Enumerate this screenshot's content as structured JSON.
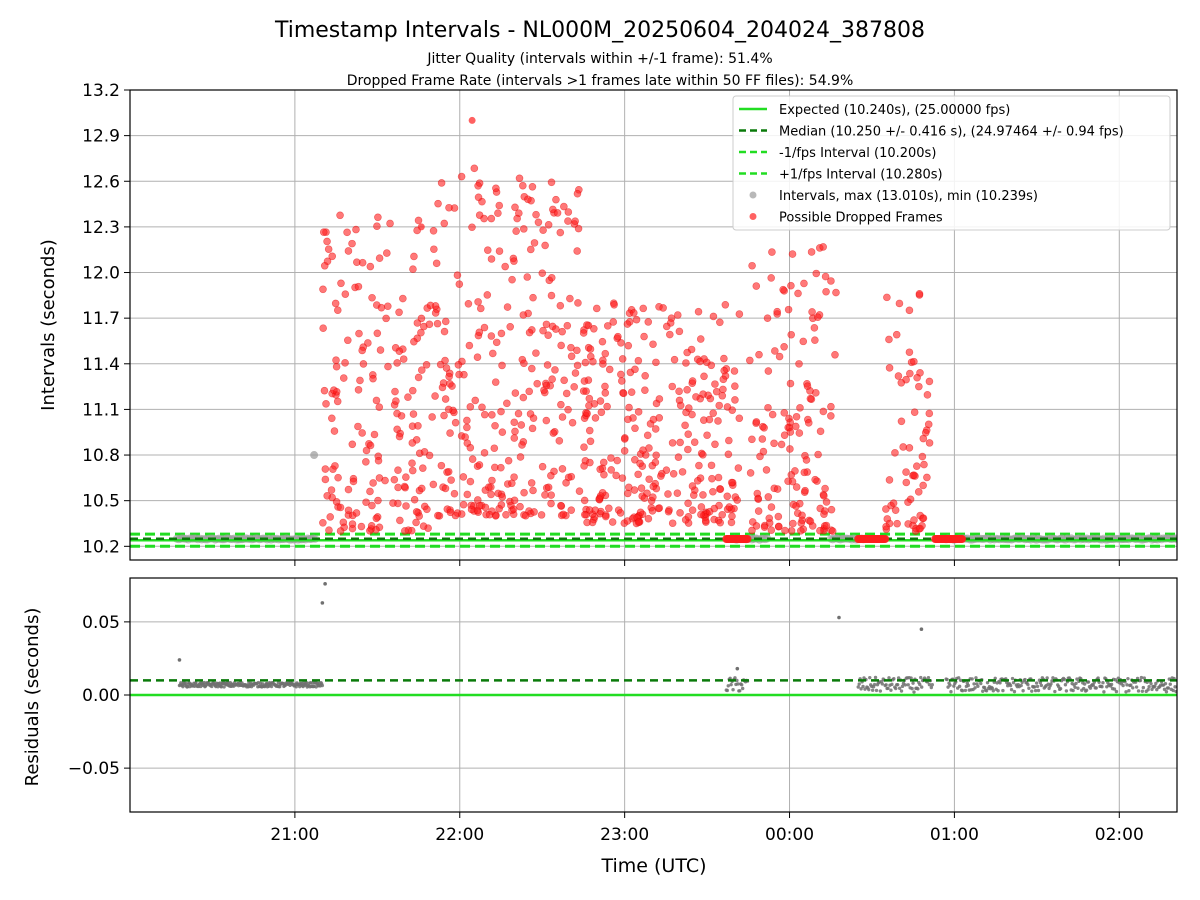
{
  "chart_data": [
    {
      "type": "scatter",
      "title": "Timestamp Intervals - NL000M_20250604_204024_387808",
      "subtitle_1": "Jitter Quality (intervals within +/-1 frame): 51.4%",
      "subtitle_2": "Dropped Frame Rate (intervals >1 frames late within 50 FF files): 54.9%",
      "ylabel": "Intervals (seconds)",
      "ylim": [
        10.11,
        13.2
      ],
      "yticks": [
        "10.2",
        "10.5",
        "10.8",
        "11.1",
        "11.4",
        "11.7",
        "12.0",
        "12.3",
        "12.6",
        "12.9",
        "13.2"
      ],
      "ytick_values": [
        10.2,
        10.5,
        10.8,
        11.1,
        11.4,
        11.7,
        12.0,
        12.3,
        12.6,
        12.9,
        13.2
      ],
      "xlim": [
        "20:23",
        "02:44"
      ],
      "xticks_minutes": [
        60,
        120,
        180,
        240,
        300,
        360
      ],
      "grid": true,
      "legend_position": "top-right",
      "lines": {
        "expected": 10.24,
        "median": 10.25,
        "minus_fps": 10.2,
        "plus_fps": 10.28
      },
      "legend": [
        {
          "label": "Expected (10.240s), (25.00000 fps)",
          "style": "solid",
          "color": "#22dd22"
        },
        {
          "label": "Median (10.250 +/- 0.416 s), (24.97464 +/- 0.94 fps)",
          "style": "dashed",
          "color": "#0a7a0a"
        },
        {
          "label": "-1/fps Interval (10.200s)",
          "style": "dashed",
          "color": "#22dd22"
        },
        {
          "label": "+1/fps Interval (10.280s)",
          "style": "dashed",
          "color": "#22dd22"
        },
        {
          "label": "Intervals, max (13.010s), min (10.239s)",
          "style": "dot",
          "color": "#9a9a9a"
        },
        {
          "label": "Possible Dropped Frames",
          "style": "dot",
          "color": "#ff2020"
        }
      ],
      "series": [
        {
          "name": "Intervals, max (13.010s), min (10.239s)",
          "segments_min": [
            [
              17,
              68
            ],
            [
              220,
              232
            ],
            [
              255,
              268
            ],
            [
              297,
              381
            ]
          ],
          "value": 10.248,
          "extra_points": [
            {
              "x": 67,
              "y": 10.8
            }
          ]
        },
        {
          "name": "Possible Dropped Frames",
          "clusters": [
            {
              "range": [
                70,
                112
              ],
              "ymin": 10.3,
              "ymax": 12.4,
              "n": 190
            },
            {
              "range": [
                112,
                165
              ],
              "ymin": 10.4,
              "ymax": 12.7,
              "n": 270
            },
            {
              "range": [
                165,
                222
              ],
              "ymin": 10.35,
              "ymax": 11.8,
              "n": 290
            },
            {
              "range": [
                225,
                257
              ],
              "ymin": 10.3,
              "ymax": 12.2,
              "n": 140
            },
            {
              "range": [
                275,
                291
              ],
              "ymin": 10.3,
              "ymax": 11.9,
              "n": 65
            }
          ],
          "highlights": [
            {
              "x": 124.5,
              "y": 13.0
            },
            {
              "x": 106,
              "y": 12.3
            }
          ],
          "baseline_blocks": [
            [
              217,
              225
            ],
            [
              265,
              275
            ],
            [
              293,
              303
            ]
          ]
        }
      ]
    },
    {
      "type": "scatter",
      "xlabel": "Time (UTC)",
      "ylabel": "Residuals (seconds)",
      "ylim": [
        -0.08,
        0.08
      ],
      "yticks": [
        "−0.05",
        "0.00",
        "0.05"
      ],
      "ytick_values": [
        -0.05,
        0.0,
        0.05
      ],
      "xticks": [
        "21:00",
        "22:00",
        "23:00",
        "00:00",
        "01:00",
        "02:00"
      ],
      "grid": true,
      "lines": {
        "zero": 0.0,
        "median_residual": 0.01
      },
      "series": [
        {
          "name": "Residuals",
          "segments_min": [
            [
              18,
              70
            ],
            [
              217,
              225
            ],
            [
              265,
              292
            ],
            [
              297,
              381
            ]
          ],
          "value": 0.007
        },
        {
          "name": "Outliers",
          "points": [
            {
              "x": 18,
              "y": 0.024
            },
            {
              "x": 70,
              "y": 0.063
            },
            {
              "x": 71,
              "y": 0.076
            },
            {
              "x": 258,
              "y": 0.053
            },
            {
              "x": 288,
              "y": 0.045
            },
            {
              "x": 221,
              "y": 0.018
            }
          ]
        }
      ]
    }
  ]
}
